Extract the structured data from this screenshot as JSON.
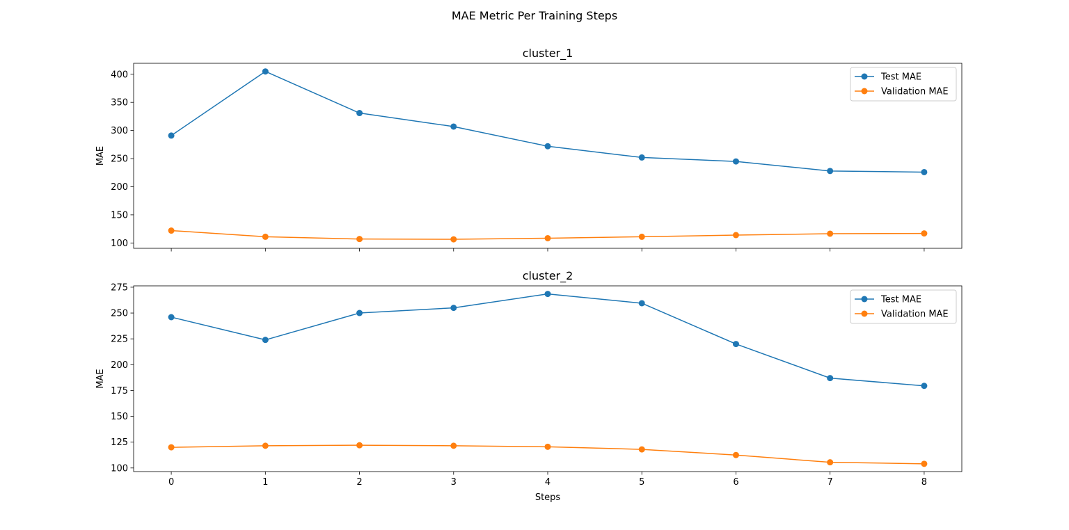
{
  "figure": {
    "title": "MAE Metric Per Training Steps"
  },
  "colors": {
    "test": "#1f77b4",
    "validation": "#ff7f0e",
    "axes": "#000000",
    "legend_border": "#cccccc"
  },
  "chart_data": [
    {
      "type": "line",
      "title": "cluster_1",
      "xlabel": "",
      "ylabel": "MAE",
      "x": [
        0,
        1,
        2,
        3,
        4,
        5,
        6,
        7,
        8
      ],
      "xticks": [
        "0",
        "1",
        "2",
        "3",
        "4",
        "5",
        "6",
        "7",
        "8"
      ],
      "xlim": [
        -0.4,
        8.4
      ],
      "ylim": [
        90.5,
        419.5
      ],
      "yticks": [
        100,
        150,
        200,
        250,
        300,
        350,
        400
      ],
      "grid": false,
      "legend": "top-right",
      "series": [
        {
          "name": "Test MAE",
          "color_key": "test",
          "values": [
            291,
            405,
            331,
            307,
            272,
            252,
            245,
            228,
            226
          ]
        },
        {
          "name": "Validation MAE",
          "color_key": "validation",
          "values": [
            122,
            111,
            107,
            106.5,
            108.5,
            111,
            114,
            116.5,
            117
          ]
        }
      ]
    },
    {
      "type": "line",
      "title": "cluster_2",
      "xlabel": "Steps",
      "ylabel": "MAE",
      "x": [
        0,
        1,
        2,
        3,
        4,
        5,
        6,
        7,
        8
      ],
      "xticks": [
        "0",
        "1",
        "2",
        "3",
        "4",
        "5",
        "6",
        "7",
        "8"
      ],
      "xlim": [
        -0.4,
        8.4
      ],
      "ylim": [
        96.5,
        276.3
      ],
      "yticks": [
        100,
        125,
        150,
        175,
        200,
        225,
        250,
        275
      ],
      "grid": false,
      "legend": "top-right",
      "series": [
        {
          "name": "Test MAE",
          "color_key": "test",
          "values": [
            246,
            224,
            250,
            255,
            268.5,
            259.5,
            220,
            187,
            179.5
          ]
        },
        {
          "name": "Validation MAE",
          "color_key": "validation",
          "values": [
            120,
            121.5,
            122,
            121.5,
            120.5,
            118,
            112.5,
            105.5,
            104
          ]
        }
      ]
    }
  ]
}
